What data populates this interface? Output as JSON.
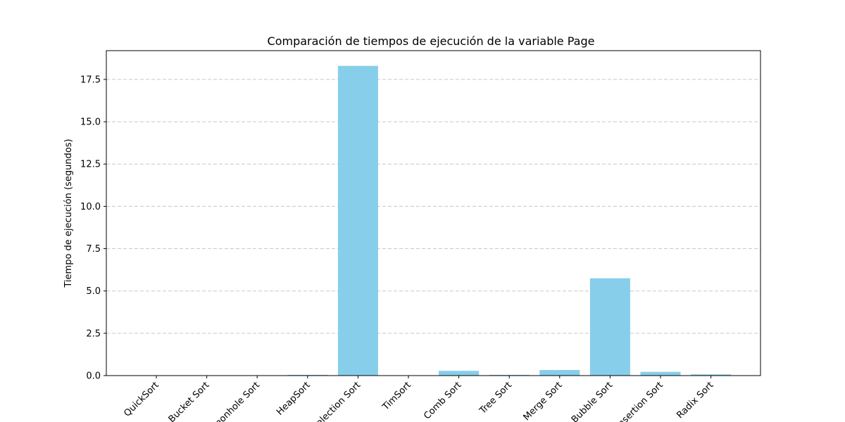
{
  "chart_data": {
    "type": "bar",
    "title": "Comparación de tiempos de ejecución de la variable Page",
    "xlabel": "",
    "ylabel": "Tiempo de ejecución (segundos)",
    "categories": [
      "QuickSort",
      "Bucket Sort",
      "Pigeonhole Sort",
      "HeapSort",
      "Selection Sort",
      "TimSort",
      "Comb Sort",
      "Tree Sort",
      "Merge Sort",
      "Bubble Sort",
      "Insertion Sort",
      "Radix Sort"
    ],
    "values": [
      0.0,
      0.0,
      0.0,
      0.04,
      18.3,
      0.0,
      0.28,
      0.04,
      0.33,
      5.75,
      0.22,
      0.07
    ],
    "ylim": [
      0,
      19.2
    ],
    "yticks": [
      0.0,
      2.5,
      5.0,
      7.5,
      10.0,
      12.5,
      15.0,
      17.5
    ],
    "ytick_labels": [
      "0.0",
      "2.5",
      "5.0",
      "7.5",
      "10.0",
      "12.5",
      "15.0",
      "17.5"
    ],
    "grid": "y-dashed",
    "bar_color": "#87ceeb",
    "grid_color": "#c8c8c8"
  }
}
